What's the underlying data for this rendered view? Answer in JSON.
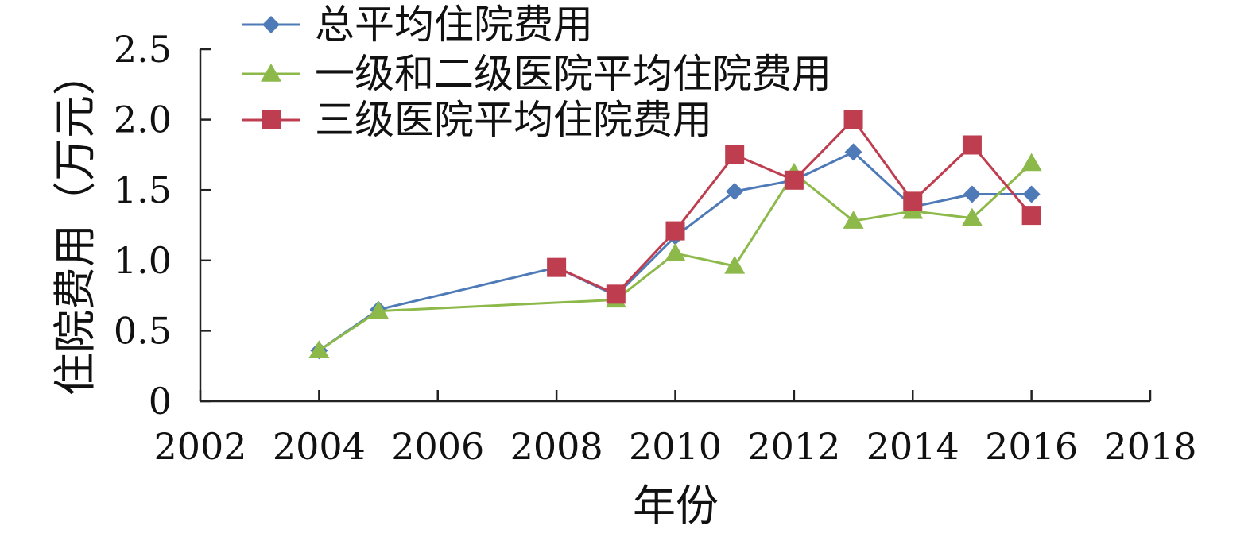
{
  "chart_data": {
    "type": "line",
    "title": "",
    "xlabel": "年份",
    "ylabel": "住院费用（万元）",
    "xlim": [
      2002,
      2018
    ],
    "ylim": [
      0,
      2.5
    ],
    "x_ticks": [
      2002,
      2004,
      2006,
      2008,
      2010,
      2012,
      2014,
      2016,
      2018
    ],
    "x_tick_labels": [
      "2002",
      "2004",
      "2006",
      "2008",
      "2010",
      "2012",
      "2014",
      "2016",
      "2018"
    ],
    "y_ticks": [
      0,
      0.5,
      1.0,
      1.5,
      2.0,
      2.5
    ],
    "y_tick_labels": [
      "0",
      "0.5",
      "1.0",
      "1.5",
      "2.0",
      "2.5"
    ],
    "grid": false,
    "legend_position": "top-left",
    "series": [
      {
        "name": "总平均住院费用",
        "color": "#4f7ab8",
        "marker": "diamond",
        "x": [
          2004,
          2005,
          2008,
          2009,
          2010,
          2011,
          2012,
          2013,
          2014,
          2015,
          2016
        ],
        "values": [
          0.36,
          0.65,
          0.95,
          0.75,
          1.17,
          1.49,
          1.57,
          1.77,
          1.38,
          1.47,
          1.47
        ]
      },
      {
        "name": "一级和二级医院平均住院费用",
        "color": "#8cb94a",
        "marker": "triangle",
        "x": [
          2004,
          2005,
          2009,
          2010,
          2011,
          2012,
          2013,
          2014,
          2015,
          2016
        ],
        "values": [
          0.36,
          0.64,
          0.72,
          1.05,
          0.96,
          1.62,
          1.28,
          1.35,
          1.3,
          1.69
        ]
      },
      {
        "name": "三级医院平均住院费用",
        "color": "#be3d4f",
        "marker": "square",
        "x": [
          2008,
          2009,
          2010,
          2011,
          2012,
          2013,
          2014,
          2015,
          2016
        ],
        "values": [
          0.95,
          0.76,
          1.21,
          1.75,
          1.57,
          2.0,
          1.42,
          1.82,
          1.32
        ]
      }
    ]
  }
}
